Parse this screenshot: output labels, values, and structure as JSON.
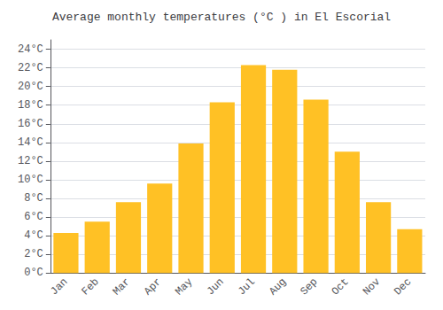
{
  "chart_data": {
    "type": "bar",
    "title": "Average monthly temperatures (°C ) in El Escorial",
    "categories": [
      "Jan",
      "Feb",
      "Mar",
      "Apr",
      "May",
      "Jun",
      "Jul",
      "Aug",
      "Sep",
      "Oct",
      "Nov",
      "Dec"
    ],
    "values": [
      4.3,
      5.5,
      7.6,
      9.6,
      13.9,
      18.3,
      22.3,
      21.8,
      18.6,
      13.0,
      7.6,
      4.7
    ],
    "color": "#FFC125",
    "ylim": [
      0,
      25
    ],
    "yticks": [
      {
        "value": 0,
        "label": "0°C"
      },
      {
        "value": 2,
        "label": "2°C"
      },
      {
        "value": 4,
        "label": "4°C"
      },
      {
        "value": 6,
        "label": "6°C"
      },
      {
        "value": 8,
        "label": "8°C"
      },
      {
        "value": 10,
        "label": "10°C"
      },
      {
        "value": 12,
        "label": "12°C"
      },
      {
        "value": 14,
        "label": "14°C"
      },
      {
        "value": 16,
        "label": "16°C"
      },
      {
        "value": 18,
        "label": "18°C"
      },
      {
        "value": 20,
        "label": "20°C"
      },
      {
        "value": 22,
        "label": "22°C"
      },
      {
        "value": 24,
        "label": "24°C"
      }
    ],
    "grid": true
  }
}
